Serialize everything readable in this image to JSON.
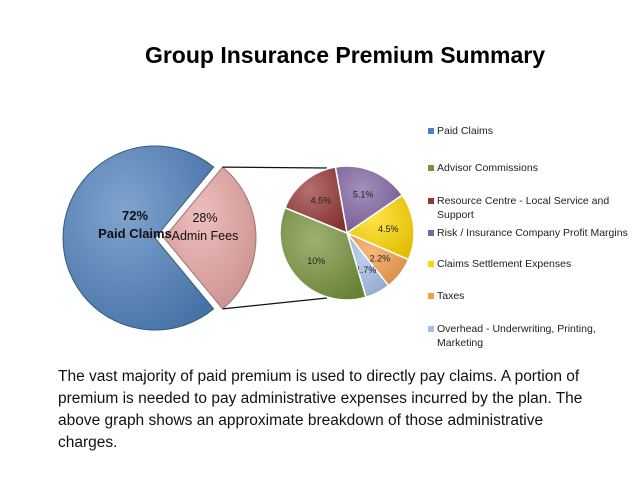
{
  "chart_data": [
    {
      "type": "pie",
      "title": "Group Insurance Premium Summary",
      "slices": [
        {
          "pct": "72%",
          "label": "Paid Claims",
          "value": 72,
          "color": "#4F81BD"
        },
        {
          "pct": "28%",
          "label": "Admin Fees",
          "value": 28,
          "color": "#E6A5A3"
        }
      ]
    },
    {
      "type": "pie",
      "series": [
        {
          "name": "Paid Claims",
          "color": "#4F81BD"
        },
        {
          "name": "Advisor Commissions",
          "value": 10,
          "data_label": "10%",
          "color": "#77933C"
        },
        {
          "name": "Resource Centre - Local Service and Support",
          "value": 4.5,
          "data_label": "4.5%",
          "color": "#953735"
        },
        {
          "name": "Risk / Insurance Company Profit Margins",
          "value": 5.1,
          "data_label": "5.1%",
          "color": "#8064A2"
        },
        {
          "name": "Claims Settlement Expenses",
          "value": 4.5,
          "data_label": "4.5%",
          "color": "#FFD700"
        },
        {
          "name": "Taxes",
          "value": 2.2,
          "data_label": "2.2%",
          "color": "#F39C4B"
        },
        {
          "name": "Overhead - Underwriting, Printing, Marketing",
          "value": 1.7,
          "data_label": "1.7%",
          "color": "#A6BDE4"
        }
      ],
      "legend": "right"
    }
  ],
  "description": "The vast majority of paid premium is used to directly pay claims. A portion of premium is needed to pay administrative expenses incurred by the plan. The above graph shows an approximate breakdown of those administrative charges."
}
